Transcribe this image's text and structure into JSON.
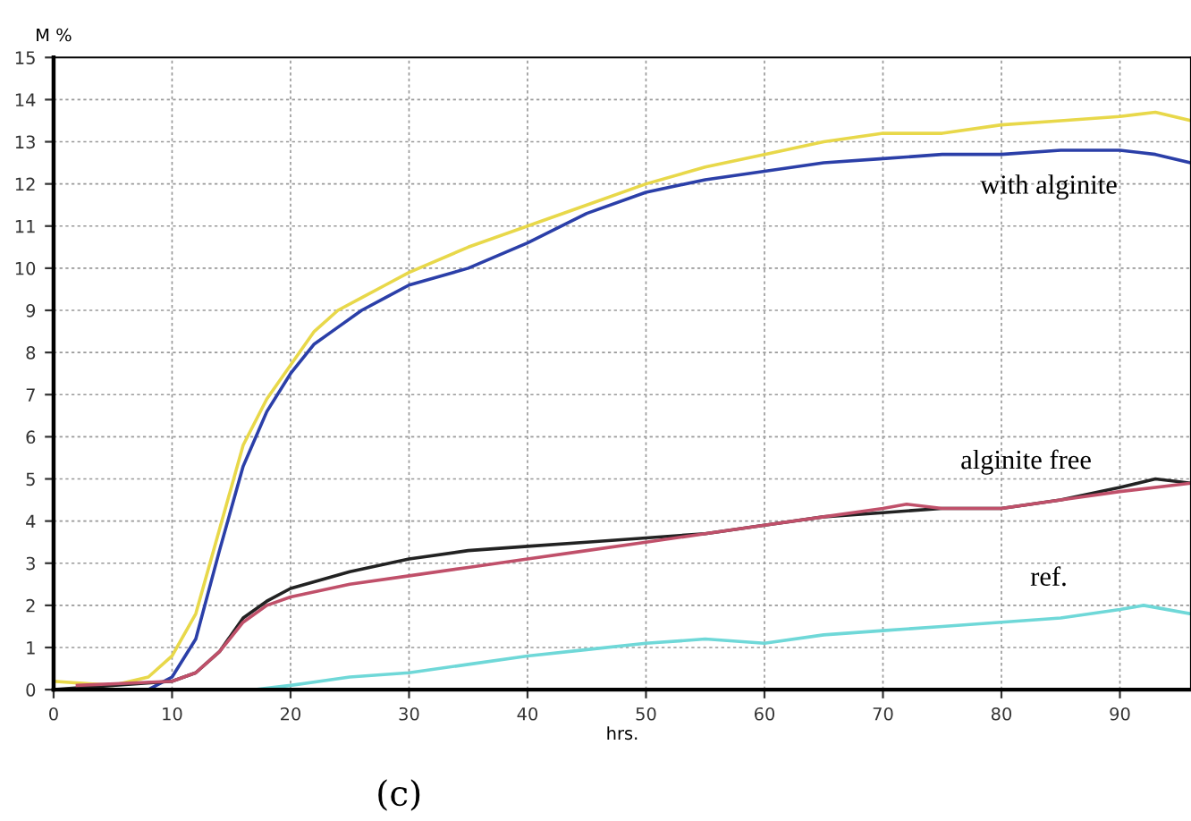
{
  "chart_data": {
    "type": "line",
    "ylabel": "M %",
    "xlabel": "hrs.",
    "xlim": [
      0,
      96
    ],
    "ylim": [
      0,
      15
    ],
    "xticks": [
      0,
      10,
      20,
      30,
      40,
      50,
      60,
      70,
      80,
      90
    ],
    "yticks": [
      0,
      1,
      2,
      3,
      4,
      5,
      6,
      7,
      8,
      9,
      10,
      11,
      12,
      13,
      14,
      15
    ],
    "grid": true,
    "line_style": "solid",
    "marker": "none",
    "series": [
      {
        "color": "#e8d84a",
        "x": [
          0,
          5,
          8,
          10,
          12,
          14,
          16,
          18,
          20,
          22,
          24,
          26,
          28,
          30,
          35,
          40,
          45,
          50,
          55,
          60,
          65,
          70,
          75,
          80,
          85,
          90,
          93,
          96
        ],
        "values": [
          0.2,
          0.1,
          0.3,
          0.8,
          1.8,
          3.8,
          5.8,
          6.9,
          7.7,
          8.5,
          9.0,
          9.3,
          9.6,
          9.9,
          10.5,
          11.0,
          11.5,
          12.0,
          12.4,
          12.7,
          13.0,
          13.2,
          13.2,
          13.4,
          13.5,
          13.6,
          13.7,
          13.5
        ]
      },
      {
        "color": "#2b3fa8",
        "x": [
          0,
          8,
          10,
          12,
          14,
          16,
          18,
          20,
          22,
          24,
          26,
          28,
          30,
          35,
          40,
          45,
          50,
          55,
          60,
          65,
          70,
          75,
          80,
          85,
          90,
          93,
          96
        ],
        "values": [
          0,
          0,
          0.3,
          1.2,
          3.3,
          5.3,
          6.6,
          7.5,
          8.2,
          8.6,
          9.0,
          9.3,
          9.6,
          10.0,
          10.6,
          11.3,
          11.8,
          12.1,
          12.3,
          12.5,
          12.6,
          12.7,
          12.7,
          12.8,
          12.8,
          12.7,
          12.5
        ]
      },
      {
        "color": "#222222",
        "x": [
          0,
          5,
          10,
          12,
          14,
          16,
          18,
          20,
          25,
          30,
          35,
          40,
          45,
          50,
          55,
          60,
          65,
          70,
          75,
          80,
          85,
          90,
          93,
          96
        ],
        "values": [
          0,
          0.1,
          0.2,
          0.4,
          0.9,
          1.7,
          2.1,
          2.4,
          2.8,
          3.1,
          3.3,
          3.4,
          3.5,
          3.6,
          3.7,
          3.9,
          4.1,
          4.2,
          4.3,
          4.3,
          4.5,
          4.8,
          5.0,
          4.9
        ]
      },
      {
        "color": "#c0506a",
        "x": [
          2,
          10,
          12,
          14,
          16,
          18,
          20,
          25,
          30,
          35,
          40,
          45,
          50,
          55,
          60,
          65,
          70,
          72,
          75,
          80,
          85,
          90,
          96
        ],
        "values": [
          0.1,
          0.2,
          0.4,
          0.9,
          1.6,
          2.0,
          2.2,
          2.5,
          2.7,
          2.9,
          3.1,
          3.3,
          3.5,
          3.7,
          3.9,
          4.1,
          4.3,
          4.4,
          4.3,
          4.3,
          4.5,
          4.7,
          4.9
        ]
      },
      {
        "color": "#6fd8d8",
        "x": [
          17,
          20,
          25,
          30,
          35,
          40,
          45,
          50,
          55,
          60,
          65,
          70,
          75,
          80,
          85,
          90,
          92,
          96
        ],
        "values": [
          0,
          0.1,
          0.3,
          0.4,
          0.6,
          0.8,
          0.95,
          1.1,
          1.2,
          1.1,
          1.3,
          1.4,
          1.5,
          1.6,
          1.7,
          1.9,
          2.0,
          1.8
        ]
      }
    ],
    "annotations": [
      "with alginite",
      "alginite free",
      "ref.",
      "(c)"
    ]
  }
}
